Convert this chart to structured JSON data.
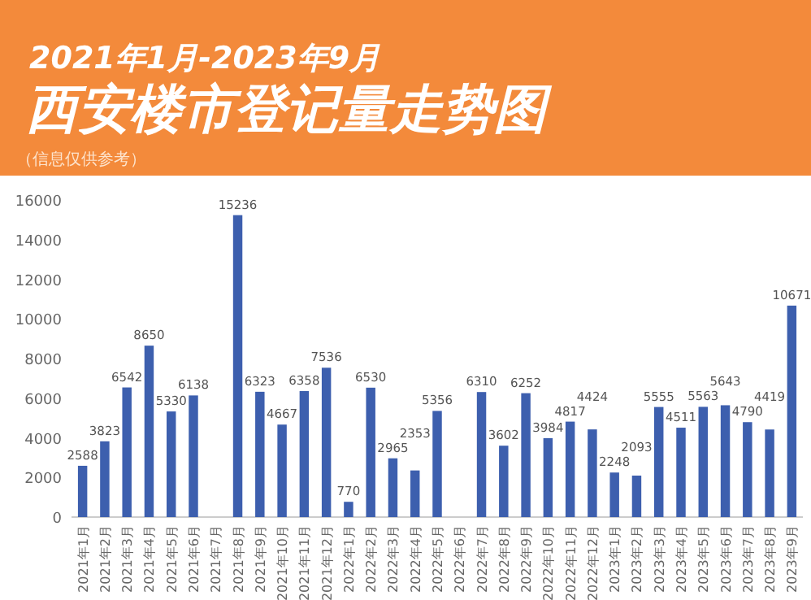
{
  "chart_data": {
    "type": "bar",
    "title": "西安楼市登记量走势图",
    "subtitle": "2021年1月-2023年9月",
    "annotations": [
      "（信息仅供参考）"
    ],
    "categories": [
      "2021年1月",
      "2021年2月",
      "2021年3月",
      "2021年4月",
      "2021年5月",
      "2021年6月",
      "2021年7月",
      "2021年8月",
      "2021年9月",
      "2021年10月",
      "2021年11月",
      "2021年12月",
      "2022年1月",
      "2022年2月",
      "2022年3月",
      "2022年4月",
      "2022年5月",
      "2022年6月",
      "2022年7月",
      "2022年8月",
      "2022年9月",
      "2022年10月",
      "2022年11月",
      "2022年12月",
      "2023年1月",
      "2023年2月",
      "2023年3月",
      "2023年4月",
      "2023年5月",
      "2023年6月",
      "2023年7月",
      "2023年8月",
      "2023年9月"
    ],
    "values": [
      2588,
      3823,
      6542,
      8650,
      5330,
      6138,
      null,
      15236,
      6323,
      4667,
      6358,
      7536,
      770,
      6530,
      2965,
      2353,
      5356,
      null,
      6310,
      3602,
      6252,
      3984,
      4817,
      4424,
      2248,
      2093,
      5555,
      4511,
      5563,
      5643,
      4790,
      4419,
      10671
    ],
    "color": "#3d5fae",
    "data_labels": true,
    "ylim": [
      0,
      16000
    ],
    "yticks": [
      0,
      2000,
      4000,
      6000,
      8000,
      10000,
      12000,
      14000,
      16000
    ],
    "grid": false
  }
}
